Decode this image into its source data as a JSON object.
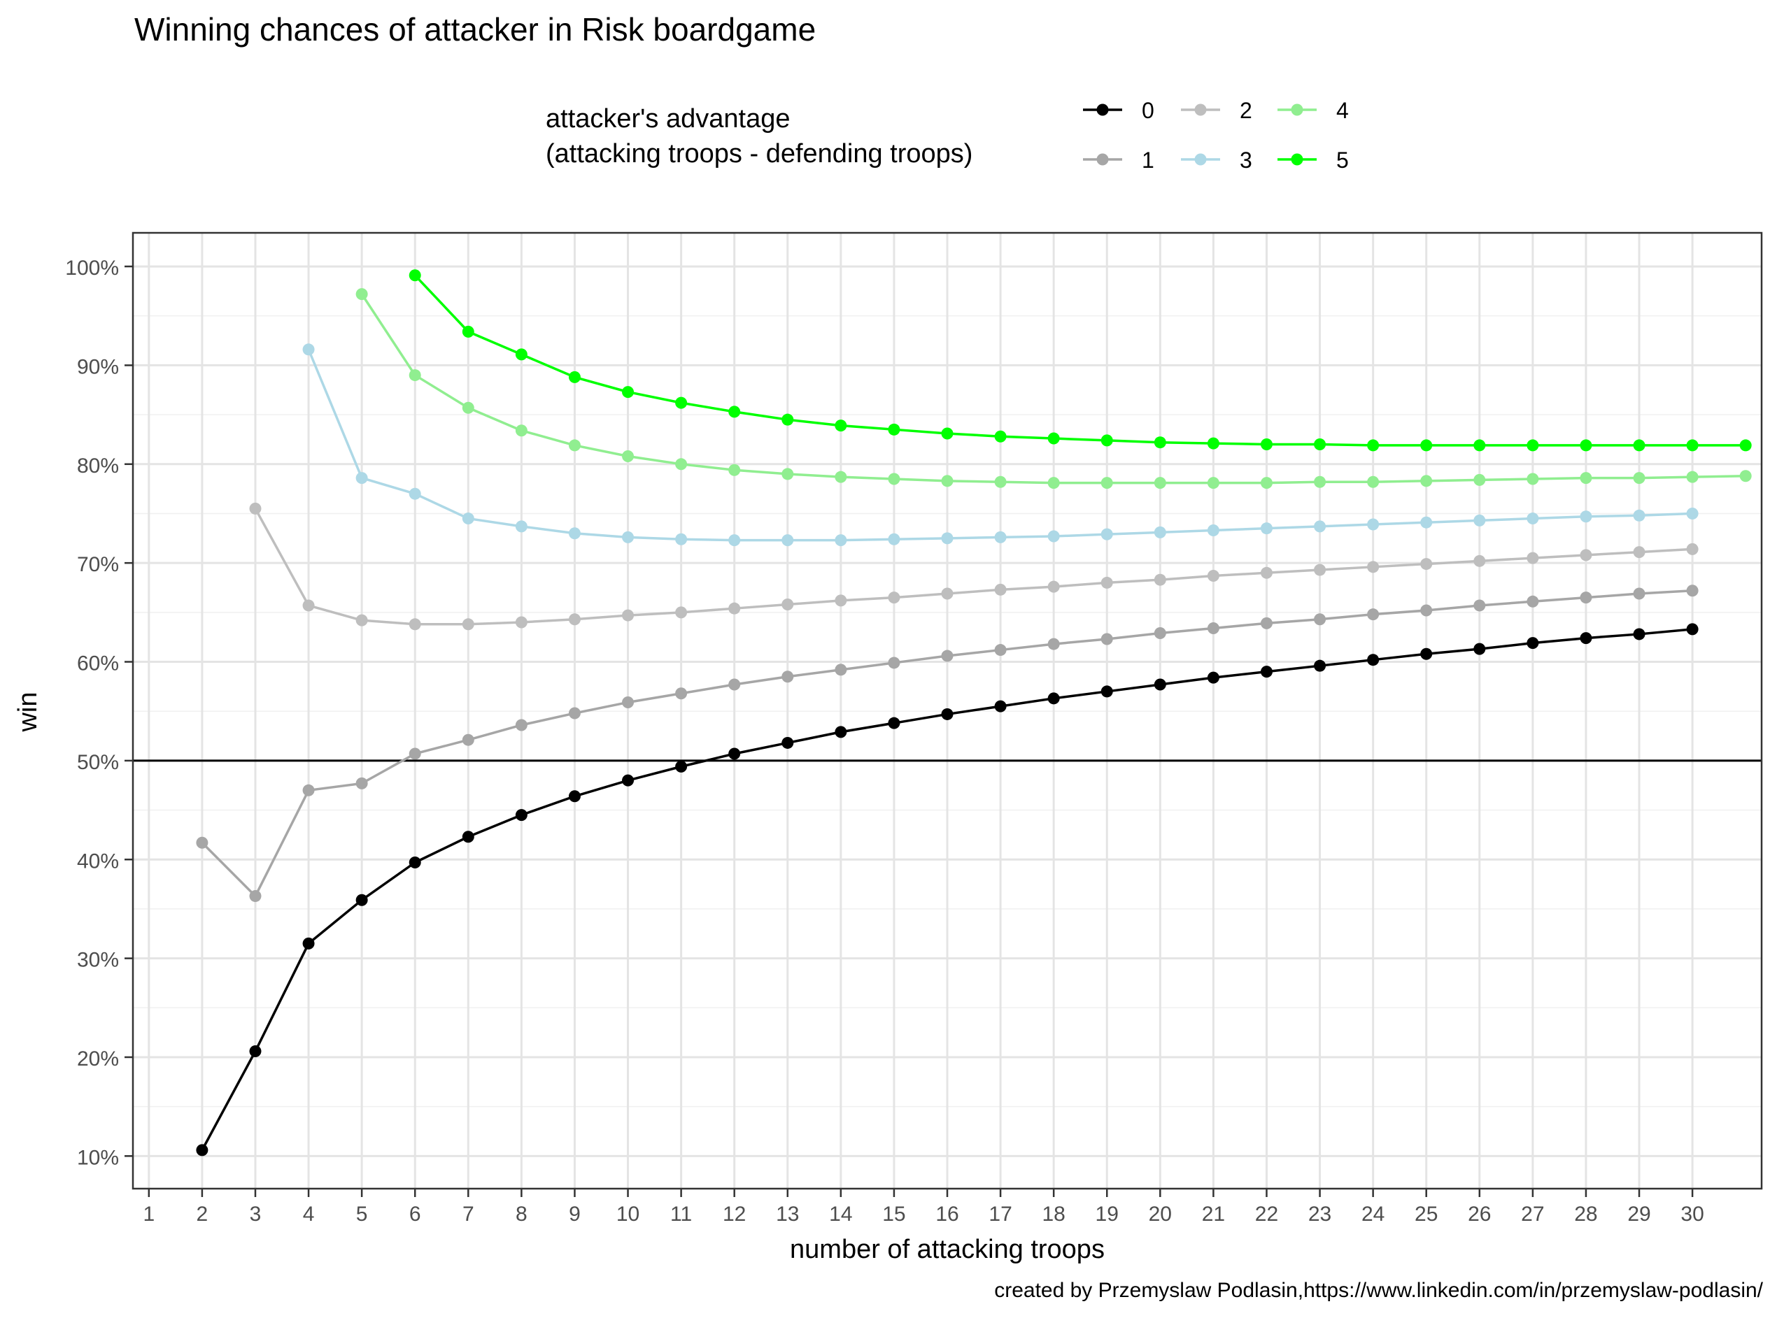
{
  "chart_data": {
    "type": "line",
    "title": "Winning chances of attacker in Risk boardgame",
    "xlabel": "number of attacking troops",
    "ylabel": "win",
    "caption": "created by Przemyslaw Podlasin,https://www.linkedin.com/in/przemyslaw-podlasin/",
    "legend": {
      "title_line1": "attacker's advantage",
      "title_line2": "(attacking troops - defending troops)",
      "position": "top"
    },
    "xlim": [
      0.7,
      31.3
    ],
    "ylim": [
      0.067,
      1.034
    ],
    "x_ticks": [
      1,
      2,
      3,
      4,
      5,
      6,
      7,
      8,
      9,
      10,
      11,
      12,
      13,
      14,
      15,
      16,
      17,
      18,
      19,
      20,
      21,
      22,
      23,
      24,
      25,
      26,
      27,
      28,
      29,
      30
    ],
    "y_ticks": [
      0.1,
      0.2,
      0.3,
      0.4,
      0.5,
      0.6,
      0.7,
      0.8,
      0.9,
      1.0
    ],
    "y_tick_labels": [
      "10%",
      "20%",
      "30%",
      "40%",
      "50%",
      "60%",
      "70%",
      "80%",
      "90%",
      "100%"
    ],
    "reference_line": 0.5,
    "grid": true,
    "series": [
      {
        "name": "0",
        "color": "#000000",
        "start_x": 2,
        "values": [
          0.106,
          0.206,
          0.315,
          0.359,
          0.397,
          0.423,
          0.445,
          0.464,
          0.48,
          0.494,
          0.507,
          0.518,
          0.529,
          0.538,
          0.547,
          0.555,
          0.563,
          0.57,
          0.577,
          0.584,
          0.59,
          0.596,
          0.602,
          0.608,
          0.613,
          0.619,
          0.624,
          0.628,
          0.633
        ]
      },
      {
        "name": "1",
        "color": "#a6a6a6",
        "start_x": 2,
        "values": [
          0.417,
          0.363,
          0.47,
          0.477,
          0.507,
          0.521,
          0.536,
          0.548,
          0.559,
          0.568,
          0.577,
          0.585,
          0.592,
          0.599,
          0.606,
          0.612,
          0.618,
          0.623,
          0.629,
          0.634,
          0.639,
          0.643,
          0.648,
          0.652,
          0.657,
          0.661,
          0.665,
          0.669,
          0.672
        ]
      },
      {
        "name": "2",
        "color": "#bebebe",
        "start_x": 3,
        "values": [
          0.755,
          0.657,
          0.642,
          0.638,
          0.638,
          0.64,
          0.643,
          0.647,
          0.65,
          0.654,
          0.658,
          0.662,
          0.665,
          0.669,
          0.673,
          0.676,
          0.68,
          0.683,
          0.687,
          0.69,
          0.693,
          0.696,
          0.699,
          0.702,
          0.705,
          0.708,
          0.711,
          0.714
        ]
      },
      {
        "name": "3",
        "color": "#add8e6",
        "start_x": 4,
        "values": [
          0.916,
          0.786,
          0.77,
          0.745,
          0.737,
          0.73,
          0.726,
          0.724,
          0.723,
          0.723,
          0.723,
          0.724,
          0.725,
          0.726,
          0.727,
          0.729,
          0.731,
          0.733,
          0.735,
          0.737,
          0.739,
          0.741,
          0.743,
          0.745,
          0.747,
          0.748,
          0.75
        ]
      },
      {
        "name": "4",
        "color": "#90ee90",
        "start_x": 5,
        "values": [
          0.972,
          0.89,
          0.857,
          0.834,
          0.819,
          0.808,
          0.8,
          0.794,
          0.79,
          0.787,
          0.785,
          0.783,
          0.782,
          0.781,
          0.781,
          0.781,
          0.781,
          0.781,
          0.782,
          0.782,
          0.783,
          0.784,
          0.785,
          0.786,
          0.786,
          0.787,
          0.788
        ]
      },
      {
        "name": "5",
        "color": "#00ff00",
        "start_x": 6,
        "values": [
          0.991,
          0.934,
          0.911,
          0.888,
          0.873,
          0.862,
          0.853,
          0.845,
          0.839,
          0.835,
          0.831,
          0.828,
          0.826,
          0.824,
          0.822,
          0.821,
          0.82,
          0.82,
          0.819,
          0.819,
          0.819,
          0.819,
          0.819,
          0.819,
          0.819,
          0.819
        ]
      }
    ]
  }
}
